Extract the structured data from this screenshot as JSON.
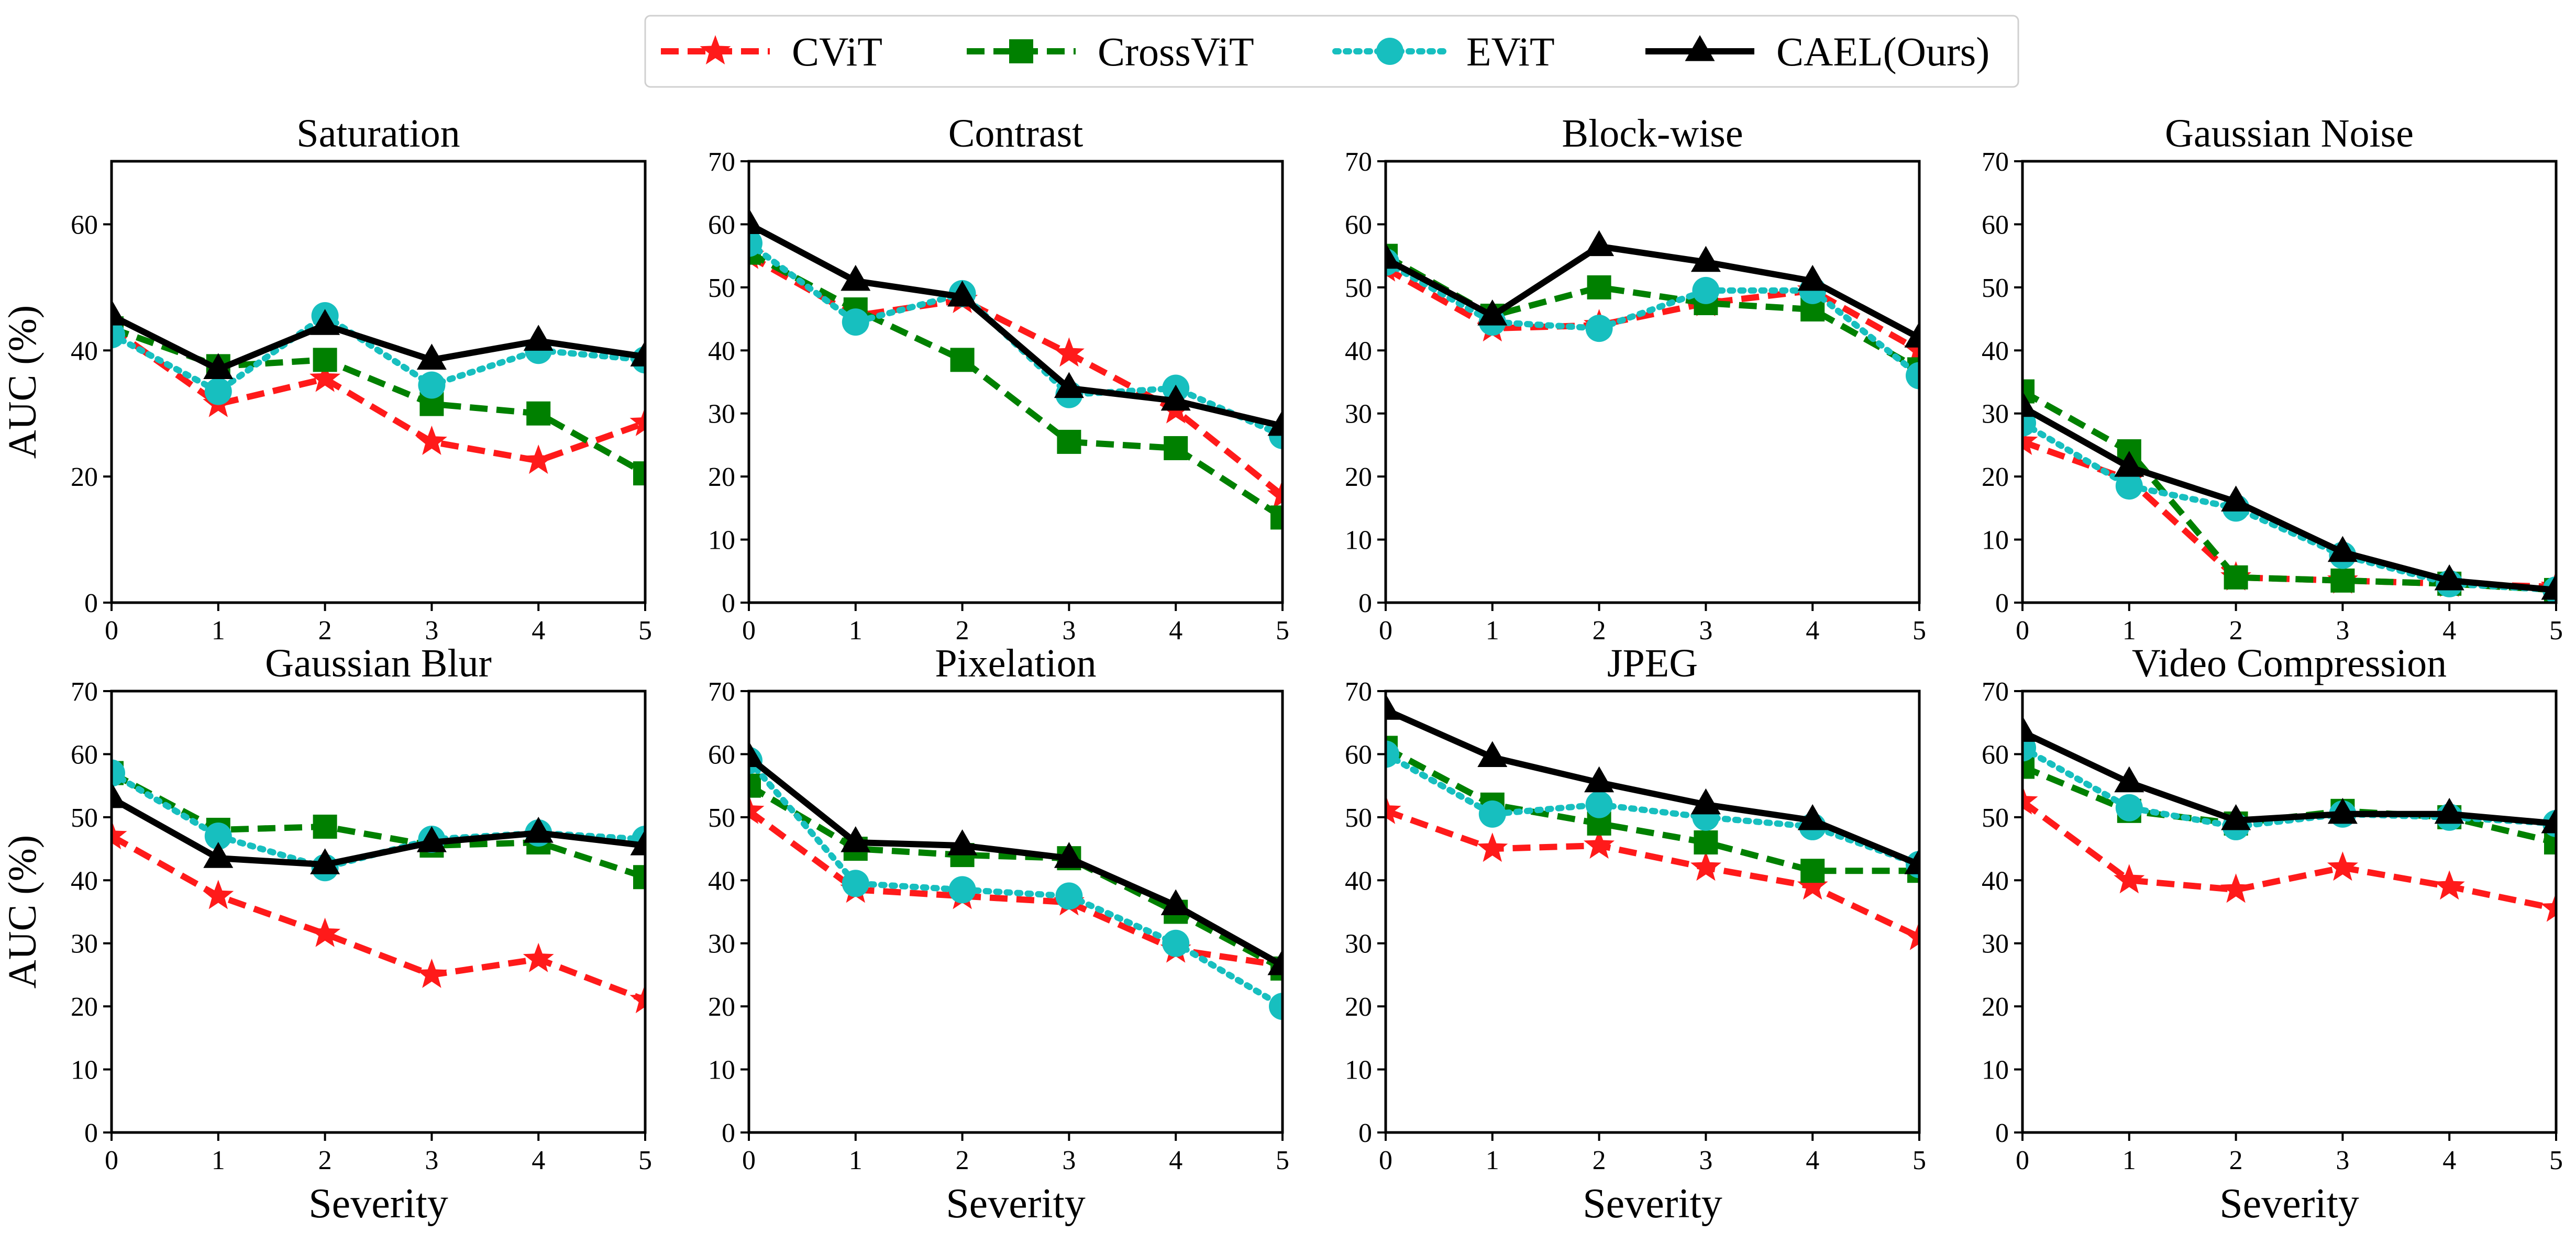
{
  "legend": [
    {
      "name": "CViT",
      "color": "#ff1a1a",
      "marker": "star",
      "dash": "dashed"
    },
    {
      "name": "CrossViT",
      "color": "#008000",
      "marker": "square",
      "dash": "dashed"
    },
    {
      "name": "EViT",
      "color": "#17bfbf",
      "marker": "circle",
      "dash": "dotted"
    },
    {
      "name": "CAEL(Ours)",
      "color": "#000000",
      "marker": "triangle",
      "dash": "solid"
    }
  ],
  "chart_data": [
    {
      "type": "line",
      "title": "Saturation",
      "xlabel": "",
      "ylabel": "AUC (%)",
      "x": [
        0,
        1,
        2,
        3,
        4,
        5
      ],
      "xlim": [
        0,
        5
      ],
      "ylim": [
        0,
        70
      ],
      "yticks": [
        0,
        20,
        40,
        60
      ],
      "series": [
        {
          "name": "CViT",
          "values": [
            43.5,
            31.5,
            35.5,
            25.5,
            22.5,
            28.5
          ]
        },
        {
          "name": "CrossViT",
          "values": [
            43.5,
            37.5,
            38.5,
            31.5,
            30,
            20.5
          ]
        },
        {
          "name": "EViT",
          "values": [
            42.5,
            33.5,
            45.5,
            34.5,
            40,
            38.5
          ]
        },
        {
          "name": "CAEL(Ours)",
          "values": [
            45.5,
            37,
            44,
            38.5,
            41.5,
            39
          ]
        }
      ]
    },
    {
      "type": "line",
      "title": "Contrast",
      "xlabel": "",
      "ylabel": "",
      "x": [
        0,
        1,
        2,
        3,
        4,
        5
      ],
      "xlim": [
        0,
        5
      ],
      "ylim": [
        0,
        70
      ],
      "yticks": [
        0,
        10,
        20,
        30,
        40,
        50,
        60,
        70
      ],
      "series": [
        {
          "name": "CViT",
          "values": [
            55,
            45.5,
            48,
            39.5,
            30.5,
            17
          ]
        },
        {
          "name": "CrossViT",
          "values": [
            55.5,
            46.5,
            38.5,
            25.5,
            24.5,
            13.5
          ]
        },
        {
          "name": "EViT",
          "values": [
            57,
            44.5,
            49,
            33,
            34,
            26.5
          ]
        },
        {
          "name": "CAEL(Ours)",
          "values": [
            60,
            51,
            48.5,
            34,
            32,
            28
          ]
        }
      ]
    },
    {
      "type": "line",
      "title": "Block-wise",
      "xlabel": "",
      "ylabel": "",
      "x": [
        0,
        1,
        2,
        3,
        4,
        5
      ],
      "xlim": [
        0,
        5
      ],
      "ylim": [
        0,
        70
      ],
      "yticks": [
        0,
        10,
        20,
        30,
        40,
        50,
        60,
        70
      ],
      "series": [
        {
          "name": "CViT",
          "values": [
            53,
            43.5,
            44,
            47.5,
            49.5,
            40
          ]
        },
        {
          "name": "CrossViT",
          "values": [
            55,
            45.5,
            50,
            47.5,
            46.5,
            37
          ]
        },
        {
          "name": "EViT",
          "values": [
            54,
            44.5,
            43.5,
            49.5,
            49.5,
            36
          ]
        },
        {
          "name": "CAEL(Ours)",
          "values": [
            54.5,
            45.5,
            56.5,
            54,
            51,
            42
          ]
        }
      ]
    },
    {
      "type": "line",
      "title": "Gaussian Noise",
      "xlabel": "",
      "ylabel": "",
      "x": [
        0,
        1,
        2,
        3,
        4,
        5
      ],
      "xlim": [
        0,
        5
      ],
      "ylim": [
        0,
        70
      ],
      "yticks": [
        0,
        10,
        20,
        30,
        40,
        50,
        60,
        70
      ],
      "series": [
        {
          "name": "CViT",
          "values": [
            25.5,
            19.5,
            4,
            3.5,
            3,
            2.5
          ]
        },
        {
          "name": "CrossViT",
          "values": [
            33.5,
            24,
            4,
            3.5,
            3,
            2
          ]
        },
        {
          "name": "EViT",
          "values": [
            28.5,
            18.5,
            15,
            7.5,
            3,
            2
          ]
        },
        {
          "name": "CAEL(Ours)",
          "values": [
            31,
            21.5,
            16,
            8,
            3.5,
            2
          ]
        }
      ]
    },
    {
      "type": "line",
      "title": "Gaussian Blur",
      "xlabel": "Severity",
      "ylabel": "AUC (%)",
      "x": [
        0,
        1,
        2,
        3,
        4,
        5
      ],
      "xlim": [
        0,
        5
      ],
      "ylim": [
        0,
        70
      ],
      "yticks": [
        0,
        10,
        20,
        30,
        40,
        50,
        60,
        70
      ],
      "series": [
        {
          "name": "CViT",
          "values": [
            47,
            37.5,
            31.5,
            25,
            27.5,
            21
          ]
        },
        {
          "name": "CrossViT",
          "values": [
            57,
            48,
            48.5,
            45.5,
            46,
            40.5
          ]
        },
        {
          "name": "EViT",
          "values": [
            57,
            47,
            42,
            46.5,
            47.5,
            46.5
          ]
        },
        {
          "name": "CAEL(Ours)",
          "values": [
            53,
            43.5,
            42.5,
            46,
            47.5,
            45.5
          ]
        }
      ]
    },
    {
      "type": "line",
      "title": "Pixelation",
      "xlabel": "Severity",
      "ylabel": "",
      "x": [
        0,
        1,
        2,
        3,
        4,
        5
      ],
      "xlim": [
        0,
        5
      ],
      "ylim": [
        0,
        70
      ],
      "yticks": [
        0,
        10,
        20,
        30,
        40,
        50,
        60,
        70
      ],
      "series": [
        {
          "name": "CViT",
          "values": [
            51,
            38.5,
            37.5,
            36.5,
            29,
            26.5
          ]
        },
        {
          "name": "CrossViT",
          "values": [
            55,
            45,
            44,
            43.5,
            35,
            26
          ]
        },
        {
          "name": "EViT",
          "values": [
            59,
            39.5,
            38.5,
            37.5,
            30,
            20
          ]
        },
        {
          "name": "CAEL(Ours)",
          "values": [
            59.5,
            46,
            45.5,
            43.5,
            36,
            26.5
          ]
        }
      ]
    },
    {
      "type": "line",
      "title": "JPEG",
      "xlabel": "Severity",
      "ylabel": "",
      "x": [
        0,
        1,
        2,
        3,
        4,
        5
      ],
      "xlim": [
        0,
        5
      ],
      "ylim": [
        0,
        70
      ],
      "yticks": [
        0,
        10,
        20,
        30,
        40,
        50,
        60,
        70
      ],
      "series": [
        {
          "name": "CViT",
          "values": [
            51,
            45,
            45.5,
            42,
            39,
            31
          ]
        },
        {
          "name": "CrossViT",
          "values": [
            61,
            52,
            49,
            46,
            41.5,
            41.5
          ]
        },
        {
          "name": "EViT",
          "values": [
            60,
            50.5,
            52,
            50,
            48.5,
            42.5
          ]
        },
        {
          "name": "CAEL(Ours)",
          "values": [
            67,
            59.5,
            55.5,
            52,
            49.5,
            42.5
          ]
        }
      ]
    },
    {
      "type": "line",
      "title": "Video Compression",
      "xlabel": "Severity",
      "ylabel": "",
      "x": [
        0,
        1,
        2,
        3,
        4,
        5
      ],
      "xlim": [
        0,
        5
      ],
      "ylim": [
        0,
        70
      ],
      "yticks": [
        0,
        10,
        20,
        30,
        40,
        50,
        60,
        70
      ],
      "series": [
        {
          "name": "CViT",
          "values": [
            52.5,
            40,
            38.5,
            42,
            39,
            35.5
          ]
        },
        {
          "name": "CrossViT",
          "values": [
            58,
            51,
            49,
            51,
            50,
            46
          ]
        },
        {
          "name": "EViT",
          "values": [
            61,
            51.5,
            48.5,
            50.5,
            50,
            49
          ]
        },
        {
          "name": "CAEL(Ours)",
          "values": [
            63.5,
            55.5,
            49.5,
            50.5,
            50.5,
            49
          ]
        }
      ]
    }
  ]
}
